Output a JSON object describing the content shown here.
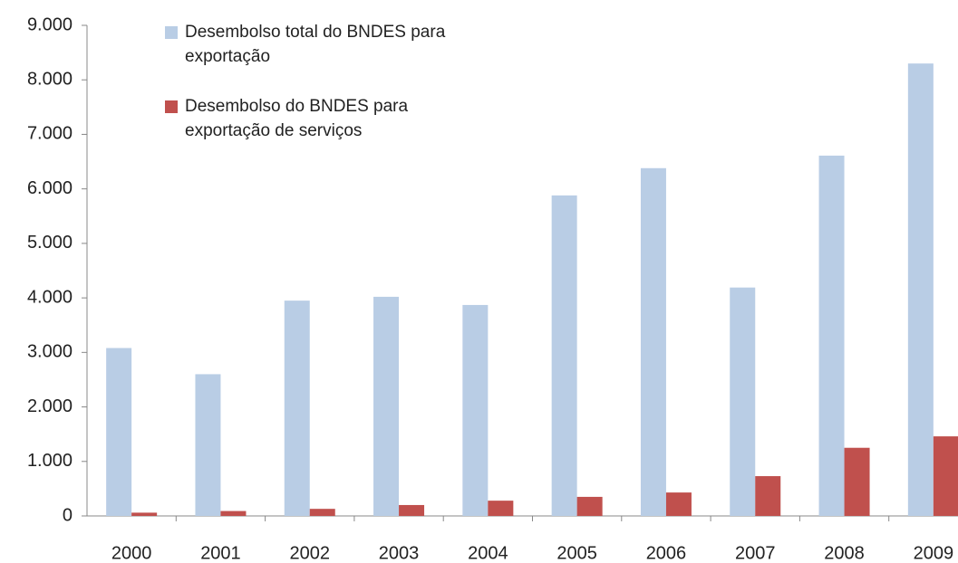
{
  "chart_data": {
    "type": "bar",
    "categories": [
      "2000",
      "2001",
      "2002",
      "2003",
      "2004",
      "2005",
      "2006",
      "2007",
      "2008",
      "2009"
    ],
    "series": [
      {
        "name": "Desembolso total do BNDES para exportação",
        "color": "#b9cde5",
        "values": [
          3080,
          2600,
          3950,
          4020,
          3870,
          5880,
          6380,
          4190,
          6610,
          8300
        ]
      },
      {
        "name": "Desembolso do BNDES para exportação de serviços",
        "color": "#c0504d",
        "values": [
          60,
          90,
          130,
          200,
          280,
          350,
          430,
          730,
          1250,
          1460
        ]
      }
    ],
    "ylim": [
      0,
      9000
    ],
    "yticks": [
      0,
      {
        "value": 1000,
        "label": "1.000"
      },
      {
        "value": 2000,
        "label": "2.000"
      },
      {
        "value": 3000,
        "label": "3.000"
      },
      {
        "value": 4000,
        "label": "4.000"
      },
      {
        "value": 5000,
        "label": "5.000"
      },
      {
        "value": 6000,
        "label": "6.000"
      },
      {
        "value": 7000,
        "label": "7.000"
      },
      {
        "value": 8000,
        "label": "8.000"
      },
      {
        "value": 9000,
        "label": "9.000"
      }
    ],
    "legend": "top-left",
    "grid": false
  }
}
